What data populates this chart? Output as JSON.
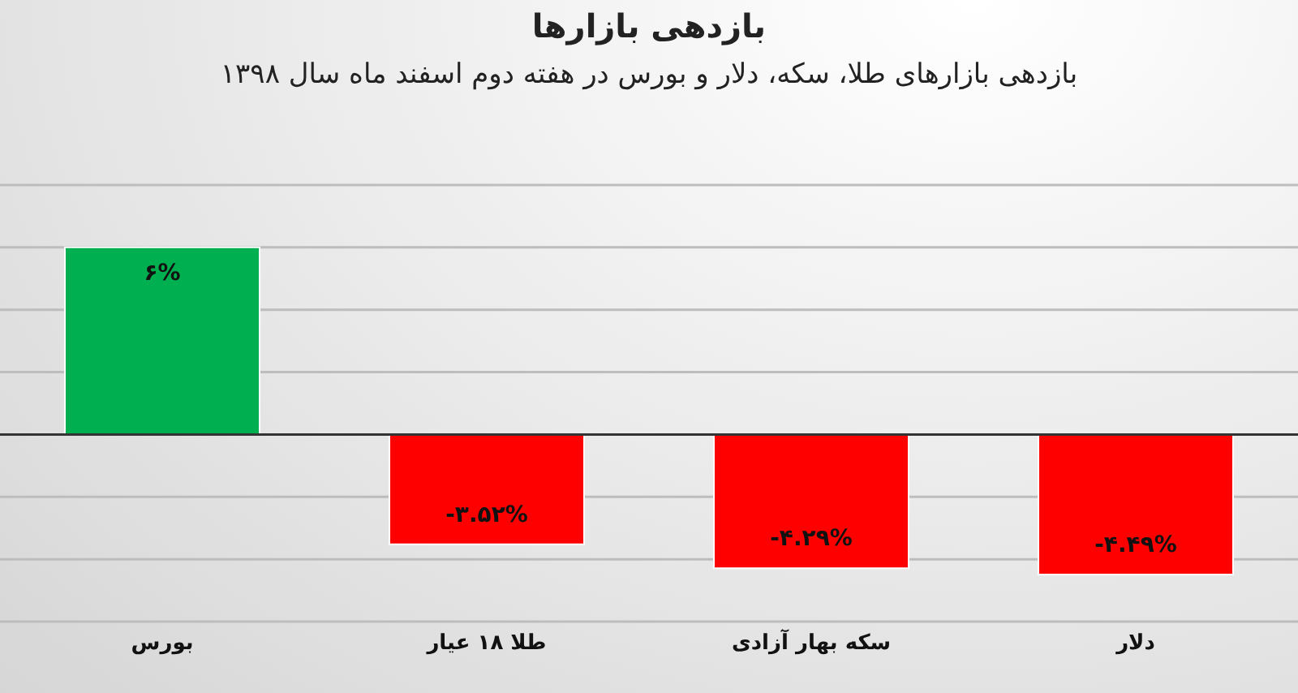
{
  "chart_data": {
    "type": "bar",
    "title": "بازدهی بازارها",
    "subtitle": "بازدهی بازارهای طلا، سکه، دلار و بورس در هفته دوم اسفند ماه سال ۱۳۹۸",
    "categories": [
      "بورس",
      "طلا ۱۸ عیار",
      "سکه بهار آزادی",
      "دلار"
    ],
    "values": [
      6,
      -3.52,
      -4.29,
      -4.49
    ],
    "colors": [
      "#00b050",
      "#ff0000",
      "#ff0000",
      "#ff0000"
    ],
    "value_labels": [
      "۶%",
      "-۳.۵۲%",
      "-۴.۲۹%",
      "-۴.۴۹%"
    ],
    "ylim": [
      -6,
      8
    ],
    "yticks": [
      {
        "value": -6,
        "label": null
      },
      {
        "value": -4,
        "label": null
      },
      {
        "value": -2,
        "label": null
      },
      {
        "value": 0,
        "label": null
      },
      {
        "value": 2,
        "label": null
      },
      {
        "value": 4,
        "label": null
      },
      {
        "value": 6,
        "label": null
      },
      {
        "value": 8,
        "label": null
      }
    ],
    "tick_labels": "x",
    "grid": "y",
    "legend": false
  }
}
